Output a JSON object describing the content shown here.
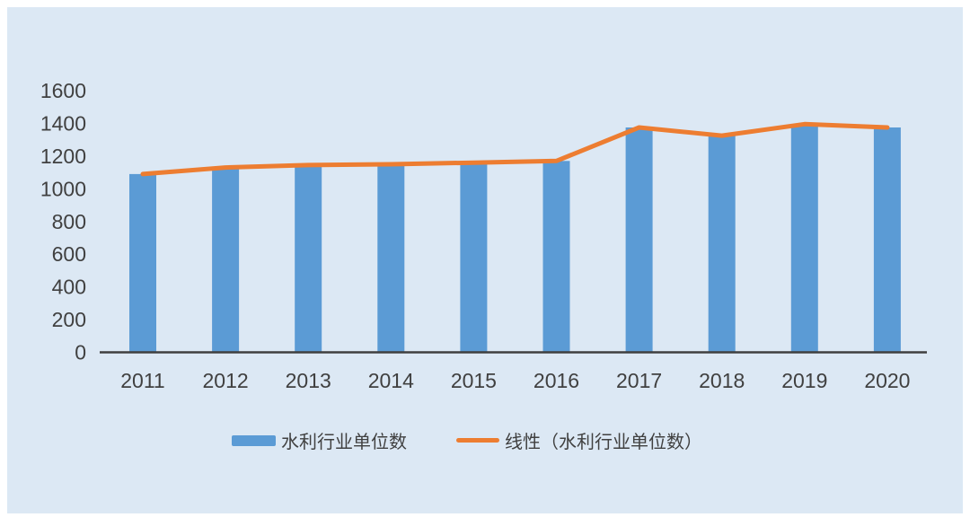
{
  "page": {
    "background_color": "#ffffff",
    "panel_background_color": "#dce8f4"
  },
  "chart_data": {
    "type": "bar",
    "title": "",
    "xlabel": "",
    "ylabel": "",
    "categories": [
      "2011",
      "2012",
      "2013",
      "2014",
      "2015",
      "2016",
      "2017",
      "2018",
      "2019",
      "2020"
    ],
    "series": [
      {
        "name": "水利行业单位数",
        "type": "bar",
        "color": "#5b9bd5",
        "values": [
          1090,
          1130,
          1145,
          1150,
          1160,
          1170,
          1375,
          1325,
          1395,
          1375
        ]
      },
      {
        "name": "线性（水利行业单位数）",
        "type": "line",
        "color": "#ed7d31",
        "values": [
          1090,
          1130,
          1145,
          1150,
          1160,
          1170,
          1375,
          1325,
          1395,
          1375
        ]
      }
    ],
    "ylim": [
      0,
      1600
    ],
    "ytick_step": 200,
    "yticks": [
      "0",
      "200",
      "400",
      "600",
      "800",
      "1000",
      "1200",
      "1400",
      "1600"
    ],
    "grid": false,
    "legend_position": "bottom",
    "axis_color": "#3f3f3f",
    "tick_label_color": "#404040"
  }
}
